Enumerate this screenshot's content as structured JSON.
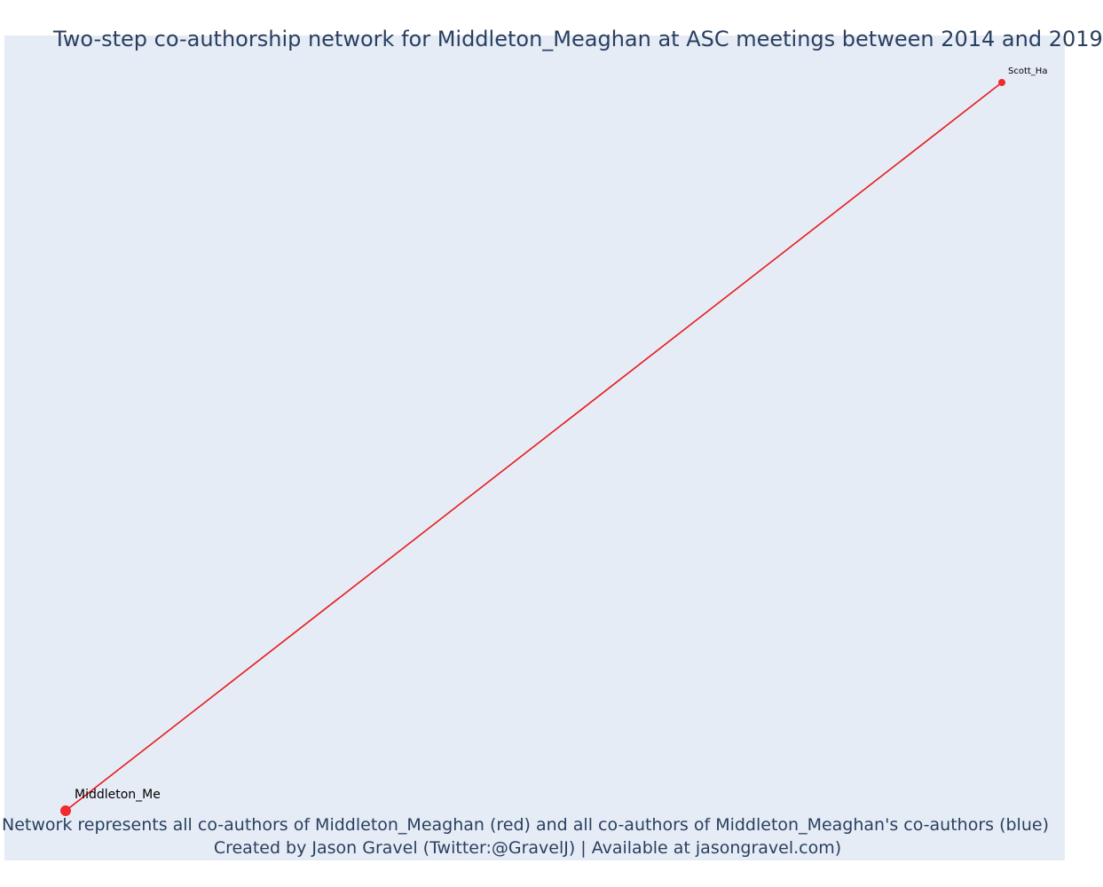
{
  "title": "Two-step co-authorship network for Middleton_Meaghan at ASC meetings between 2014 and 2019",
  "caption": {
    "line1": "Network represents all co-authors of Middleton_Meaghan (red) and all co-authors of Middleton_Meaghan's co-authors (blue)",
    "line2": "Created by Jason Gravel (Twitter:@GravelJ) | Available at jasongravel.com)"
  },
  "colors": {
    "background": "#e5ecf6",
    "edge": "#e8191c",
    "node": "#ef2b2d",
    "text": "#2a3f5f"
  },
  "network": {
    "nodes": [
      {
        "id": "middleton",
        "label": "Middleton_Me",
        "group": "ego"
      },
      {
        "id": "scott",
        "label": "Scott_Ha",
        "group": "co-author"
      }
    ],
    "edges": [
      {
        "source": "middleton",
        "target": "scott"
      }
    ]
  }
}
